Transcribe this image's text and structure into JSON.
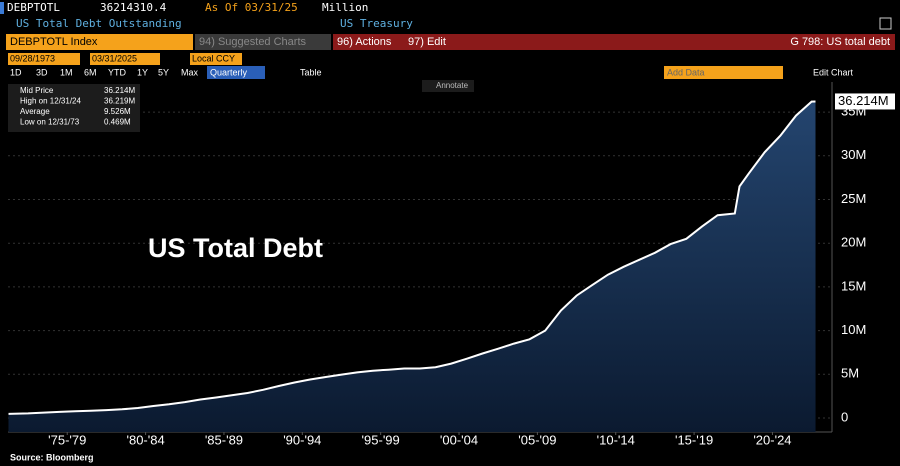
{
  "header": {
    "ticker": "DEBPTOTL",
    "price": "36214310.4",
    "as_of": "As Of 03/31/25",
    "units": "Million",
    "description": "US Total Debt Outstanding",
    "source_name": "US Treasury"
  },
  "toolbar": {
    "security": "DEBPTOTL Index",
    "suggested": "94) Suggested Charts",
    "actions": "96) Actions",
    "edit": "97) Edit",
    "chart_id": "G 798: US total debt"
  },
  "range_bar": {
    "start": "09/28/1973",
    "end": "03/31/2025",
    "currency": "Local CCY"
  },
  "controls": {
    "periods": [
      "1D",
      "3D",
      "1M",
      "6M",
      "YTD",
      "1Y",
      "5Y",
      "Max"
    ],
    "frequency": "Quarterly",
    "table": "Table",
    "add_data": "Add Data",
    "edit_chart": "Edit Chart",
    "annotate": "Annotate"
  },
  "chart_data": {
    "type": "area",
    "title": "US Total Debt",
    "source": "Source: Bloomberg",
    "legend_stats": [
      {
        "label": "Mid Price",
        "value": "36.214M"
      },
      {
        "label": "High on 12/31/24",
        "value": "36.219M"
      },
      {
        "label": "Average",
        "value": "9.526M"
      },
      {
        "label": "Low on 12/31/73",
        "value": "0.469M"
      }
    ],
    "x": [
      1973.75,
      1975,
      1976,
      1977,
      1978,
      1979,
      1980,
      1981,
      1982,
      1983,
      1984,
      1985,
      1986,
      1987,
      1988,
      1989,
      1990,
      1991,
      1992,
      1993,
      1994,
      1995,
      1996,
      1997,
      1998,
      1999,
      2000,
      2001,
      2002,
      2003,
      2004,
      2005,
      2006,
      2007,
      2008,
      2009,
      2010,
      2011,
      2012,
      2013,
      2014,
      2015,
      2016,
      2017,
      2018,
      2019,
      2020.1,
      2020.4,
      2021,
      2022,
      2023,
      2024,
      2025,
      2025.25
    ],
    "series": [
      {
        "name": "US Total Debt",
        "color": "#ffffff",
        "values": [
          0.47,
          0.53,
          0.62,
          0.7,
          0.77,
          0.83,
          0.91,
          1.0,
          1.14,
          1.38,
          1.57,
          1.82,
          2.12,
          2.35,
          2.6,
          2.86,
          3.23,
          3.66,
          4.06,
          4.41,
          4.69,
          4.97,
          5.22,
          5.41,
          5.53,
          5.66,
          5.67,
          5.81,
          6.23,
          6.78,
          7.38,
          7.93,
          8.51,
          9.01,
          10.0,
          12.3,
          14.0,
          15.2,
          16.4,
          17.3,
          18.1,
          18.9,
          19.9,
          20.5,
          21.9,
          23.2,
          23.4,
          26.5,
          28.0,
          30.4,
          32.3,
          34.6,
          36.2,
          36.214
        ]
      }
    ],
    "last_label": "36.214M",
    "xlim": [
      1973.72,
      2026.3
    ],
    "xticks": [
      {
        "value": 1977.5,
        "label": "'75-'79"
      },
      {
        "value": 1982.5,
        "label": "'80-'84"
      },
      {
        "value": 1987.5,
        "label": "'85-'89"
      },
      {
        "value": 1992.5,
        "label": "'90-'94"
      },
      {
        "value": 1997.5,
        "label": "'95-'99"
      },
      {
        "value": 2002.5,
        "label": "'00-'04"
      },
      {
        "value": 2007.5,
        "label": "'05-'09"
      },
      {
        "value": 2012.5,
        "label": "'10-'14"
      },
      {
        "value": 2017.5,
        "label": "'15-'19"
      },
      {
        "value": 2022.5,
        "label": "'20-'24"
      }
    ],
    "ylim": [
      -1.6,
      38.44
    ],
    "yticks": [
      0,
      {
        "value": 5,
        "label": "5M"
      },
      {
        "value": 10,
        "label": "10M"
      },
      {
        "value": 15,
        "label": "15M"
      },
      {
        "value": 20,
        "label": "20M"
      },
      {
        "value": 25,
        "label": "25M"
      },
      {
        "value": 30,
        "label": "30M"
      },
      {
        "value": 35,
        "label": "35M"
      }
    ],
    "grid": true
  }
}
